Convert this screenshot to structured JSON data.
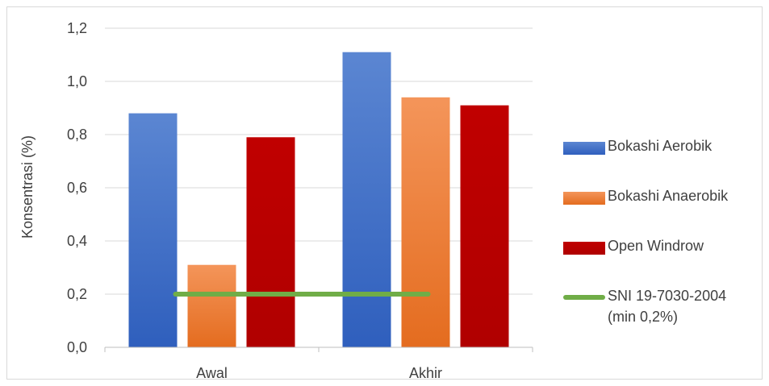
{
  "chart_data": {
    "type": "bar",
    "ylabel": "Konsentrasi (%)",
    "xlabel": "",
    "title": "",
    "categories": [
      "Awal",
      "Akhir"
    ],
    "ylim": [
      0,
      1.2
    ],
    "yticks": [
      "0,0",
      "0,2",
      "0,4",
      "0,6",
      "0,8",
      "1,0",
      "1,2"
    ],
    "ytick_values": [
      0,
      0.2,
      0.4,
      0.6,
      0.8,
      1.0,
      1.2
    ],
    "grid": true,
    "legend_position": "right",
    "series": [
      {
        "name": "Bokashi Aerobik",
        "values": [
          0.88,
          1.11
        ],
        "color": "#4472c4"
      },
      {
        "name": "Bokashi Anaerobik",
        "values": [
          0.31,
          0.94
        ],
        "color": "#ed7d31"
      },
      {
        "name": "Open Windrow",
        "values": [
          0.79,
          0.91
        ],
        "color": "#c00000"
      }
    ],
    "reference_line": {
      "name": "SNI 19-7030-2004\n(min 0,2%)",
      "value": 0.2,
      "color": "#70ad47"
    }
  }
}
